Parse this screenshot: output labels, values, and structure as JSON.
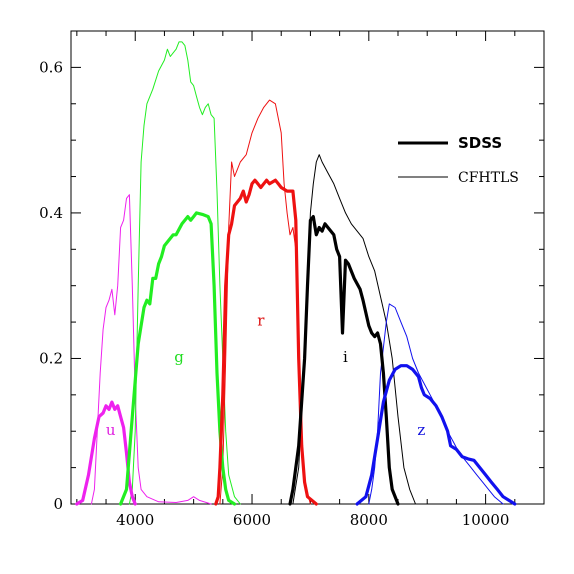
{
  "chart_data": {
    "type": "line",
    "title": "",
    "xlabel": "",
    "ylabel": "",
    "xlim": [
      2900,
      11000
    ],
    "ylim": [
      0,
      0.65
    ],
    "x_ticks": [
      4000,
      6000,
      8000,
      10000
    ],
    "x_tick_labels": [
      "4000",
      "6000",
      "8000",
      "10000"
    ],
    "y_ticks": [
      0,
      0.2,
      0.4,
      0.6
    ],
    "y_tick_labels": [
      "0",
      "0.2",
      "0.4",
      "0.6"
    ],
    "legend": {
      "placement": "upper-right",
      "entries": [
        {
          "name": "SDSS",
          "style": "thick"
        },
        {
          "name": "CFHTLS",
          "style": "thin"
        }
      ]
    },
    "band_labels": [
      {
        "text": "u",
        "x": 3580,
        "y": 0.095,
        "color": "#e020e0"
      },
      {
        "text": "g",
        "x": 4750,
        "y": 0.195,
        "color": "#22dd22"
      },
      {
        "text": "r",
        "x": 6150,
        "y": 0.245,
        "color": "#dd1111"
      },
      {
        "text": "i",
        "x": 7600,
        "y": 0.195,
        "color": "#000000"
      },
      {
        "text": "z",
        "x": 8900,
        "y": 0.095,
        "color": "#1111dd"
      }
    ],
    "series": [
      {
        "name": "SDSS",
        "band": "u",
        "color": "#ee22ee",
        "width": 3.2,
        "points": [
          [
            3000,
            0
          ],
          [
            3100,
            0.005
          ],
          [
            3200,
            0.04
          ],
          [
            3300,
            0.09
          ],
          [
            3380,
            0.12
          ],
          [
            3450,
            0.125
          ],
          [
            3500,
            0.135
          ],
          [
            3550,
            0.13
          ],
          [
            3600,
            0.14
          ],
          [
            3650,
            0.13
          ],
          [
            3700,
            0.135
          ],
          [
            3750,
            0.12
          ],
          [
            3800,
            0.105
          ],
          [
            3850,
            0.07
          ],
          [
            3900,
            0.03
          ],
          [
            3950,
            0.01
          ],
          [
            4000,
            0
          ]
        ]
      },
      {
        "name": "CFHTLS",
        "band": "u",
        "color": "#ee22ee",
        "width": 1,
        "points": [
          [
            3250,
            0
          ],
          [
            3300,
            0.02
          ],
          [
            3350,
            0.1
          ],
          [
            3400,
            0.18
          ],
          [
            3450,
            0.24
          ],
          [
            3500,
            0.27
          ],
          [
            3550,
            0.28
          ],
          [
            3600,
            0.295
          ],
          [
            3650,
            0.26
          ],
          [
            3700,
            0.3
          ],
          [
            3750,
            0.38
          ],
          [
            3800,
            0.39
          ],
          [
            3850,
            0.42
          ],
          [
            3900,
            0.425
          ],
          [
            3950,
            0.3
          ],
          [
            4000,
            0.15
          ],
          [
            4050,
            0.05
          ],
          [
            4100,
            0.02
          ],
          [
            4200,
            0.01
          ],
          [
            4400,
            0.003
          ],
          [
            4700,
            0.002
          ],
          [
            4900,
            0.005
          ],
          [
            5000,
            0.01
          ],
          [
            5100,
            0.005
          ],
          [
            5300,
            0
          ]
        ]
      },
      {
        "name": "SDSS",
        "band": "g",
        "color": "#22ee22",
        "width": 3.2,
        "points": [
          [
            3750,
            0
          ],
          [
            3850,
            0.02
          ],
          [
            3950,
            0.12
          ],
          [
            4050,
            0.22
          ],
          [
            4150,
            0.27
          ],
          [
            4200,
            0.28
          ],
          [
            4250,
            0.275
          ],
          [
            4300,
            0.31
          ],
          [
            4350,
            0.31
          ],
          [
            4400,
            0.33
          ],
          [
            4450,
            0.34
          ],
          [
            4500,
            0.355
          ],
          [
            4550,
            0.36
          ],
          [
            4600,
            0.365
          ],
          [
            4650,
            0.37
          ],
          [
            4700,
            0.37
          ],
          [
            4800,
            0.385
          ],
          [
            4900,
            0.395
          ],
          [
            4950,
            0.39
          ],
          [
            5000,
            0.395
          ],
          [
            5050,
            0.4
          ],
          [
            5150,
            0.398
          ],
          [
            5250,
            0.395
          ],
          [
            5300,
            0.385
          ],
          [
            5350,
            0.3
          ],
          [
            5400,
            0.18
          ],
          [
            5450,
            0.1
          ],
          [
            5500,
            0.05
          ],
          [
            5550,
            0.02
          ],
          [
            5600,
            0.005
          ],
          [
            5700,
            0
          ]
        ]
      },
      {
        "name": "CFHTLS",
        "band": "g",
        "color": "#22ee22",
        "width": 1,
        "points": [
          [
            3900,
            0
          ],
          [
            3950,
            0.02
          ],
          [
            4000,
            0.1
          ],
          [
            4050,
            0.3
          ],
          [
            4100,
            0.47
          ],
          [
            4150,
            0.52
          ],
          [
            4200,
            0.55
          ],
          [
            4300,
            0.57
          ],
          [
            4400,
            0.595
          ],
          [
            4500,
            0.61
          ],
          [
            4550,
            0.625
          ],
          [
            4600,
            0.615
          ],
          [
            4650,
            0.62
          ],
          [
            4700,
            0.625
          ],
          [
            4750,
            0.635
          ],
          [
            4800,
            0.635
          ],
          [
            4850,
            0.63
          ],
          [
            4900,
            0.61
          ],
          [
            4950,
            0.58
          ],
          [
            5000,
            0.575
          ],
          [
            5050,
            0.56
          ],
          [
            5100,
            0.545
          ],
          [
            5150,
            0.535
          ],
          [
            5200,
            0.545
          ],
          [
            5250,
            0.55
          ],
          [
            5300,
            0.535
          ],
          [
            5350,
            0.53
          ],
          [
            5400,
            0.43
          ],
          [
            5450,
            0.3
          ],
          [
            5500,
            0.2
          ],
          [
            5550,
            0.1
          ],
          [
            5600,
            0.04
          ],
          [
            5700,
            0.01
          ],
          [
            5800,
            0
          ]
        ]
      },
      {
        "name": "SDSS",
        "band": "r",
        "color": "#ee1111",
        "width": 3.2,
        "points": [
          [
            5380,
            0
          ],
          [
            5420,
            0.01
          ],
          [
            5450,
            0.05
          ],
          [
            5500,
            0.15
          ],
          [
            5550,
            0.3
          ],
          [
            5600,
            0.37
          ],
          [
            5650,
            0.385
          ],
          [
            5700,
            0.41
          ],
          [
            5750,
            0.415
          ],
          [
            5800,
            0.42
          ],
          [
            5850,
            0.43
          ],
          [
            5900,
            0.415
          ],
          [
            5950,
            0.425
          ],
          [
            6000,
            0.44
          ],
          [
            6050,
            0.445
          ],
          [
            6100,
            0.44
          ],
          [
            6150,
            0.435
          ],
          [
            6200,
            0.44
          ],
          [
            6250,
            0.445
          ],
          [
            6300,
            0.44
          ],
          [
            6400,
            0.445
          ],
          [
            6450,
            0.44
          ],
          [
            6500,
            0.435
          ],
          [
            6600,
            0.43
          ],
          [
            6700,
            0.43
          ],
          [
            6750,
            0.39
          ],
          [
            6800,
            0.2
          ],
          [
            6850,
            0.08
          ],
          [
            6900,
            0.03
          ],
          [
            6950,
            0.01
          ],
          [
            7100,
            0
          ]
        ]
      },
      {
        "name": "CFHTLS",
        "band": "r",
        "color": "#ee1111",
        "width": 1,
        "points": [
          [
            5450,
            0
          ],
          [
            5500,
            0.05
          ],
          [
            5550,
            0.2
          ],
          [
            5600,
            0.38
          ],
          [
            5650,
            0.47
          ],
          [
            5700,
            0.45
          ],
          [
            5750,
            0.46
          ],
          [
            5800,
            0.47
          ],
          [
            5900,
            0.48
          ],
          [
            6000,
            0.51
          ],
          [
            6100,
            0.53
          ],
          [
            6200,
            0.545
          ],
          [
            6300,
            0.555
          ],
          [
            6400,
            0.55
          ],
          [
            6500,
            0.51
          ],
          [
            6550,
            0.44
          ],
          [
            6600,
            0.4
          ],
          [
            6650,
            0.37
          ],
          [
            6700,
            0.38
          ],
          [
            6750,
            0.35
          ],
          [
            6800,
            0.2
          ],
          [
            6850,
            0.08
          ],
          [
            6900,
            0.03
          ],
          [
            7000,
            0
          ]
        ]
      },
      {
        "name": "SDSS",
        "band": "i",
        "color": "#000000",
        "width": 3.2,
        "points": [
          [
            6650,
            0
          ],
          [
            6700,
            0.02
          ],
          [
            6800,
            0.08
          ],
          [
            6900,
            0.2
          ],
          [
            6950,
            0.3
          ],
          [
            7000,
            0.39
          ],
          [
            7050,
            0.395
          ],
          [
            7100,
            0.37
          ],
          [
            7150,
            0.38
          ],
          [
            7200,
            0.375
          ],
          [
            7250,
            0.385
          ],
          [
            7300,
            0.38
          ],
          [
            7400,
            0.37
          ],
          [
            7450,
            0.35
          ],
          [
            7500,
            0.34
          ],
          [
            7550,
            0.235
          ],
          [
            7600,
            0.335
          ],
          [
            7650,
            0.33
          ],
          [
            7700,
            0.32
          ],
          [
            7750,
            0.31
          ],
          [
            7850,
            0.295
          ],
          [
            7900,
            0.28
          ],
          [
            8000,
            0.245
          ],
          [
            8050,
            0.235
          ],
          [
            8100,
            0.23
          ],
          [
            8150,
            0.235
          ],
          [
            8200,
            0.22
          ],
          [
            8250,
            0.18
          ],
          [
            8300,
            0.12
          ],
          [
            8350,
            0.05
          ],
          [
            8400,
            0.02
          ],
          [
            8500,
            0
          ]
        ]
      },
      {
        "name": "CFHTLS",
        "band": "i",
        "color": "#000000",
        "width": 1,
        "points": [
          [
            6700,
            0
          ],
          [
            6800,
            0.05
          ],
          [
            6900,
            0.2
          ],
          [
            7000,
            0.4
          ],
          [
            7050,
            0.44
          ],
          [
            7100,
            0.47
          ],
          [
            7150,
            0.48
          ],
          [
            7200,
            0.47
          ],
          [
            7300,
            0.455
          ],
          [
            7400,
            0.44
          ],
          [
            7500,
            0.42
          ],
          [
            7600,
            0.4
          ],
          [
            7700,
            0.385
          ],
          [
            7800,
            0.375
          ],
          [
            7900,
            0.365
          ],
          [
            8000,
            0.34
          ],
          [
            8100,
            0.32
          ],
          [
            8200,
            0.285
          ],
          [
            8300,
            0.25
          ],
          [
            8400,
            0.2
          ],
          [
            8500,
            0.12
          ],
          [
            8600,
            0.05
          ],
          [
            8700,
            0.02
          ],
          [
            8800,
            0
          ]
        ]
      },
      {
        "name": "SDSS",
        "band": "z",
        "color": "#1111ee",
        "width": 3.2,
        "points": [
          [
            7800,
            0
          ],
          [
            7950,
            0.01
          ],
          [
            8050,
            0.04
          ],
          [
            8150,
            0.09
          ],
          [
            8250,
            0.14
          ],
          [
            8350,
            0.17
          ],
          [
            8450,
            0.185
          ],
          [
            8550,
            0.19
          ],
          [
            8650,
            0.19
          ],
          [
            8750,
            0.185
          ],
          [
            8850,
            0.175
          ],
          [
            8900,
            0.16
          ],
          [
            8950,
            0.15
          ],
          [
            9050,
            0.145
          ],
          [
            9150,
            0.135
          ],
          [
            9250,
            0.12
          ],
          [
            9350,
            0.1
          ],
          [
            9400,
            0.08
          ],
          [
            9500,
            0.075
          ],
          [
            9600,
            0.065
          ],
          [
            9700,
            0.062
          ],
          [
            9800,
            0.06
          ],
          [
            9900,
            0.05
          ],
          [
            10000,
            0.04
          ],
          [
            10100,
            0.03
          ],
          [
            10200,
            0.02
          ],
          [
            10300,
            0.01
          ],
          [
            10400,
            0.005
          ],
          [
            10500,
            0
          ]
        ]
      },
      {
        "name": "CFHTLS",
        "band": "z",
        "color": "#1111ee",
        "width": 1,
        "points": [
          [
            8000,
            0
          ],
          [
            8050,
            0.02
          ],
          [
            8100,
            0.05
          ],
          [
            8150,
            0.1
          ],
          [
            8200,
            0.18
          ],
          [
            8300,
            0.25
          ],
          [
            8350,
            0.275
          ],
          [
            8450,
            0.27
          ],
          [
            8550,
            0.25
          ],
          [
            8650,
            0.23
          ],
          [
            8750,
            0.2
          ],
          [
            8850,
            0.18
          ],
          [
            8950,
            0.165
          ],
          [
            9050,
            0.15
          ],
          [
            9150,
            0.135
          ],
          [
            9250,
            0.12
          ],
          [
            9350,
            0.1
          ],
          [
            9450,
            0.085
          ],
          [
            9550,
            0.07
          ],
          [
            9650,
            0.06
          ],
          [
            9750,
            0.05
          ],
          [
            9850,
            0.04
          ],
          [
            9950,
            0.03
          ],
          [
            10050,
            0.02
          ],
          [
            10150,
            0.01
          ],
          [
            10300,
            0
          ]
        ]
      }
    ]
  }
}
